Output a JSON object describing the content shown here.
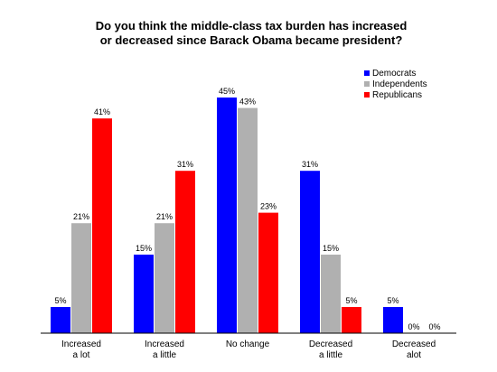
{
  "chart_data": {
    "type": "bar",
    "title_lines": [
      "Do you think the middle-class tax burden has increased",
      "or decreased since  Barack Obama became president?"
    ],
    "categories": [
      [
        "Increased",
        "a lot"
      ],
      [
        "Increased",
        "a little"
      ],
      [
        "No change"
      ],
      [
        "Decreased",
        "a little"
      ],
      [
        "Decreased",
        "alot"
      ]
    ],
    "series": [
      {
        "name": "Democrats",
        "color": "#0000ff",
        "values": [
          5,
          15,
          45,
          31,
          5
        ]
      },
      {
        "name": "Independents",
        "color": "#b0b0b0",
        "values": [
          21,
          21,
          43,
          15,
          0
        ]
      },
      {
        "name": "Republicans",
        "color": "#ff0000",
        "values": [
          41,
          31,
          23,
          5,
          0
        ]
      }
    ],
    "value_suffix": "%",
    "ylim": [
      0,
      45
    ],
    "grid": false,
    "legend": "top-right"
  }
}
